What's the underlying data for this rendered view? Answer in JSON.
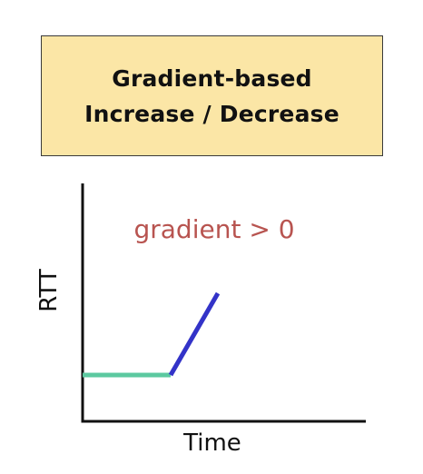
{
  "title": {
    "line1": "Gradient-based",
    "line2": "Increase / Decrease"
  },
  "plot": {
    "annotation": "gradient > 0",
    "xlabel": "Time",
    "ylabel": "RTT",
    "colors": {
      "axis": "#111111",
      "flat_segment": "#5cc9a0",
      "rising_segment": "#3333c8",
      "annotation": "#b85450"
    }
  }
}
